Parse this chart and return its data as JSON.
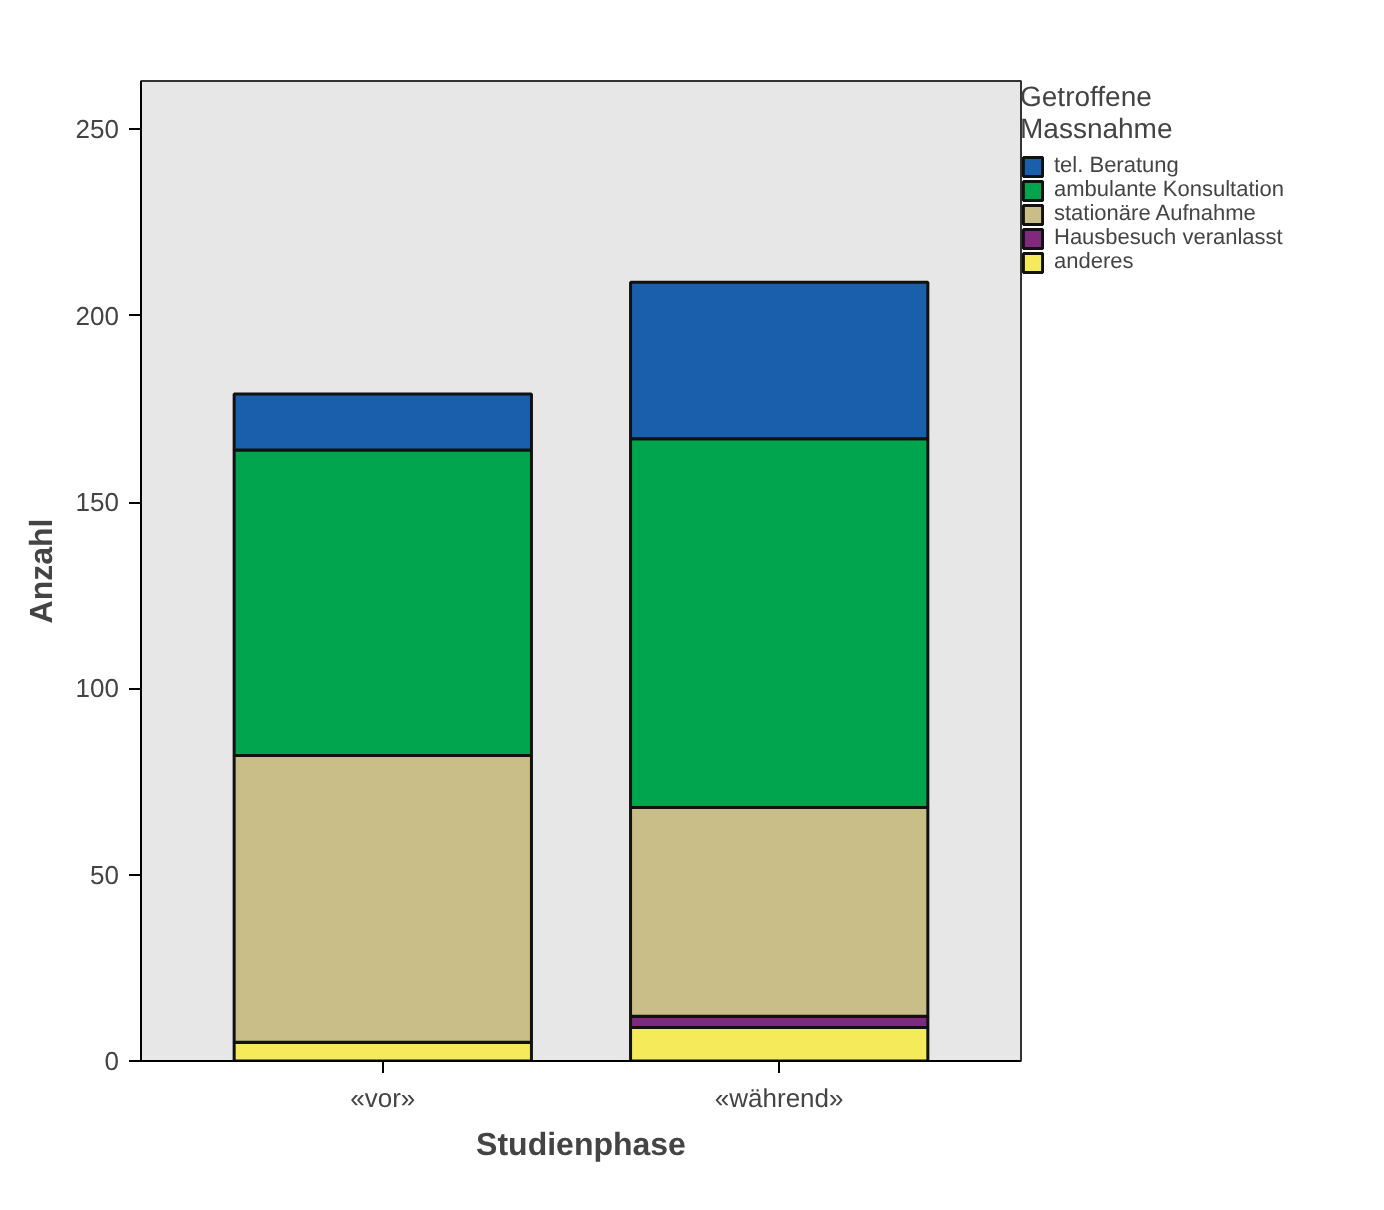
{
  "chart_data": {
    "type": "bar",
    "stacked": true,
    "xlabel": "Studienphase",
    "ylabel": "Anzahl",
    "legend_title": "Getroffene Massnahme",
    "categories": [
      "«vor»",
      "«während»"
    ],
    "series": [
      {
        "name": "anderes",
        "color": "#f5ea5a",
        "values": [
          5,
          9
        ]
      },
      {
        "name": "Hausbesuch veranlasst",
        "color": "#7f2a7f",
        "values": [
          0,
          3
        ]
      },
      {
        "name": "stationäre Aufnahme",
        "color": "#cabe88",
        "values": [
          77,
          56
        ]
      },
      {
        "name": "ambulante Konsultation",
        "color": "#00a54e",
        "values": [
          82,
          99
        ]
      },
      {
        "name": "tel. Beratung",
        "color": "#1a5fac",
        "values": [
          15,
          42
        ]
      }
    ],
    "ylim": [
      0,
      263
    ],
    "yticks": [
      0,
      50,
      100,
      150,
      200,
      250
    ],
    "grid": false,
    "legend": "top right"
  }
}
